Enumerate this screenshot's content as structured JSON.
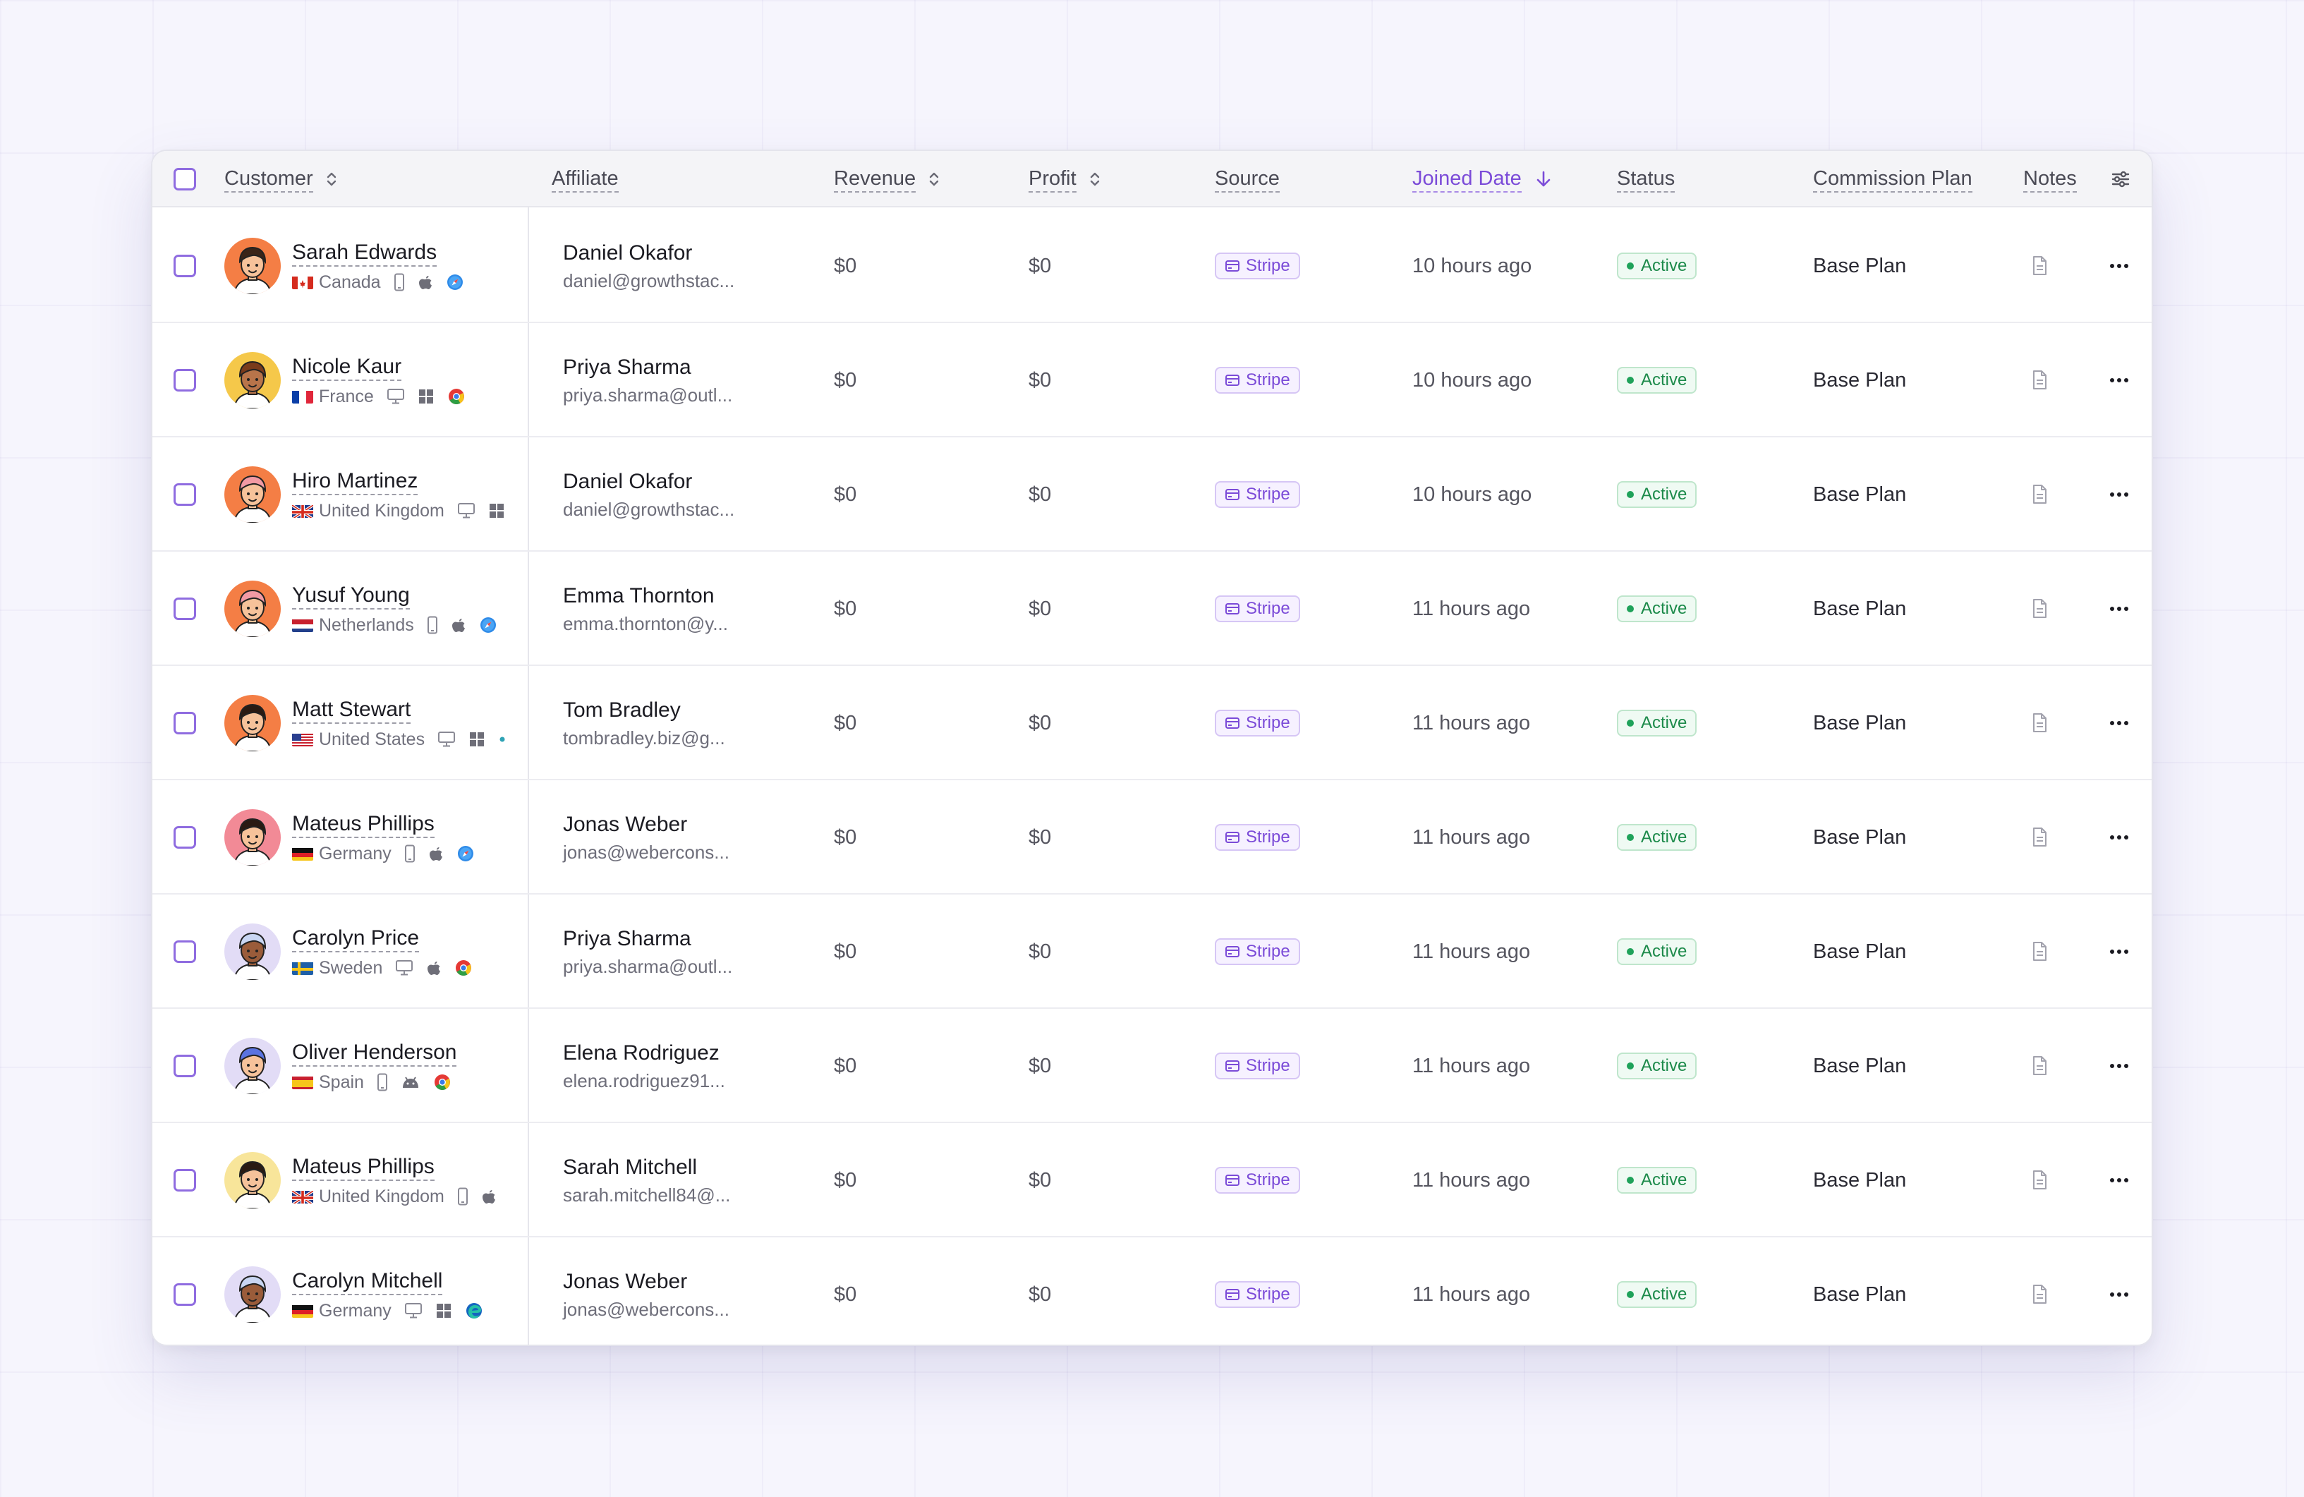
{
  "table": {
    "columns": {
      "customer": "Customer",
      "affiliate": "Affiliate",
      "revenue": "Revenue",
      "profit": "Profit",
      "source": "Source",
      "joined_date": "Joined Date",
      "status": "Status",
      "commission_plan": "Commission Plan",
      "notes": "Notes"
    },
    "rows": [
      {
        "name": "Sarah Edwards",
        "country": "Canada",
        "flag": "ca",
        "device": "mobile",
        "os": "apple",
        "browser": "safari",
        "avatar_bg": "#f47e45",
        "skin": "#f6c29a",
        "hair": "#3a2418",
        "affiliate_name": "Daniel Okafor",
        "affiliate_email": "daniel@growthstac...",
        "revenue": "$0",
        "profit": "$0",
        "source": "Stripe",
        "joined": "10 hours ago",
        "status": "Active",
        "plan": "Base Plan"
      },
      {
        "name": "Nicole Kaur",
        "country": "France",
        "flag": "fr",
        "device": "desktop",
        "os": "windows",
        "browser": "chrome",
        "avatar_bg": "#f5c84a",
        "skin": "#b8744a",
        "hair": "#7a3b1b",
        "affiliate_name": "Priya Sharma",
        "affiliate_email": "priya.sharma@outl...",
        "revenue": "$0",
        "profit": "$0",
        "source": "Stripe",
        "joined": "10 hours ago",
        "status": "Active",
        "plan": "Base Plan"
      },
      {
        "name": "Hiro Martinez",
        "country": "United Kingdom",
        "flag": "gb",
        "device": "desktop",
        "os": "windows",
        "browser": "",
        "avatar_bg": "#f47e45",
        "skin": "#f6c29a",
        "hair": "#f29aa4",
        "affiliate_name": "Daniel Okafor",
        "affiliate_email": "daniel@growthstac...",
        "revenue": "$0",
        "profit": "$0",
        "source": "Stripe",
        "joined": "10 hours ago",
        "status": "Active",
        "plan": "Base Plan"
      },
      {
        "name": "Yusuf Young",
        "country": "Netherlands",
        "flag": "nl",
        "device": "mobile",
        "os": "apple",
        "browser": "safari",
        "avatar_bg": "#f47e45",
        "skin": "#f6c29a",
        "hair": "#f29aa4",
        "affiliate_name": "Emma Thornton",
        "affiliate_email": "emma.thornton@y...",
        "revenue": "$0",
        "profit": "$0",
        "source": "Stripe",
        "joined": "11 hours ago",
        "status": "Active",
        "plan": "Base Plan"
      },
      {
        "name": "Matt Stewart",
        "country": "United States",
        "flag": "us",
        "device": "desktop",
        "os": "windows",
        "browser": "dot",
        "avatar_bg": "#f47e45",
        "skin": "#f6c29a",
        "hair": "#2a1a12",
        "affiliate_name": "Tom Bradley",
        "affiliate_email": "tombradley.biz@g...",
        "revenue": "$0",
        "profit": "$0",
        "source": "Stripe",
        "joined": "11 hours ago",
        "status": "Active",
        "plan": "Base Plan"
      },
      {
        "name": "Mateus Phillips",
        "country": "Germany",
        "flag": "de",
        "device": "mobile",
        "os": "apple",
        "browser": "safari",
        "avatar_bg": "#f28a96",
        "skin": "#f6c29a",
        "hair": "#2a1a12",
        "affiliate_name": "Jonas Weber",
        "affiliate_email": "jonas@webercons...",
        "revenue": "$0",
        "profit": "$0",
        "source": "Stripe",
        "joined": "11 hours ago",
        "status": "Active",
        "plan": "Base Plan"
      },
      {
        "name": "Carolyn Price",
        "country": "Sweden",
        "flag": "se",
        "device": "desktop",
        "os": "apple",
        "browser": "chrome",
        "avatar_bg": "#e2dcf6",
        "skin": "#9a5c3a",
        "hair": "#c9d6f2",
        "affiliate_name": "Priya Sharma",
        "affiliate_email": "priya.sharma@outl...",
        "revenue": "$0",
        "profit": "$0",
        "source": "Stripe",
        "joined": "11 hours ago",
        "status": "Active",
        "plan": "Base Plan"
      },
      {
        "name": "Oliver Henderson",
        "country": "Spain",
        "flag": "es",
        "device": "mobile",
        "os": "android",
        "browser": "chrome",
        "avatar_bg": "#e2dcf6",
        "skin": "#f6c29a",
        "hair": "#5a73e0",
        "affiliate_name": "Elena Rodriguez",
        "affiliate_email": "elena.rodriguez91...",
        "revenue": "$0",
        "profit": "$0",
        "source": "Stripe",
        "joined": "11 hours ago",
        "status": "Active",
        "plan": "Base Plan"
      },
      {
        "name": "Mateus Phillips",
        "country": "United Kingdom",
        "flag": "gb",
        "device": "mobile",
        "os": "apple",
        "browser": "",
        "avatar_bg": "#f8e59a",
        "skin": "#f6c29a",
        "hair": "#2a1a12",
        "affiliate_name": "Sarah Mitchell",
        "affiliate_email": "sarah.mitchell84@...",
        "revenue": "$0",
        "profit": "$0",
        "source": "Stripe",
        "joined": "11 hours ago",
        "status": "Active",
        "plan": "Base Plan"
      },
      {
        "name": "Carolyn Mitchell",
        "country": "Germany",
        "flag": "de",
        "device": "desktop",
        "os": "windows",
        "browser": "edge",
        "avatar_bg": "#e2dcf6",
        "skin": "#9a5c3a",
        "hair": "#c9d6f2",
        "affiliate_name": "Jonas Weber",
        "affiliate_email": "jonas@webercons...",
        "revenue": "$0",
        "profit": "$0",
        "source": "Stripe",
        "joined": "11 hours ago",
        "status": "Active",
        "plan": "Base Plan"
      }
    ]
  },
  "colors": {
    "accent": "#7b4bd8",
    "status_active": "#1c8a4a",
    "source_badge": "#7b4bd8"
  },
  "icons": {
    "sort": "sort-up-down-icon",
    "sorted_desc": "arrow-down-icon",
    "settings": "sliders-icon",
    "notes": "document-icon",
    "row_menu": "more-horizontal-icon",
    "source": "credit-card-icon"
  }
}
